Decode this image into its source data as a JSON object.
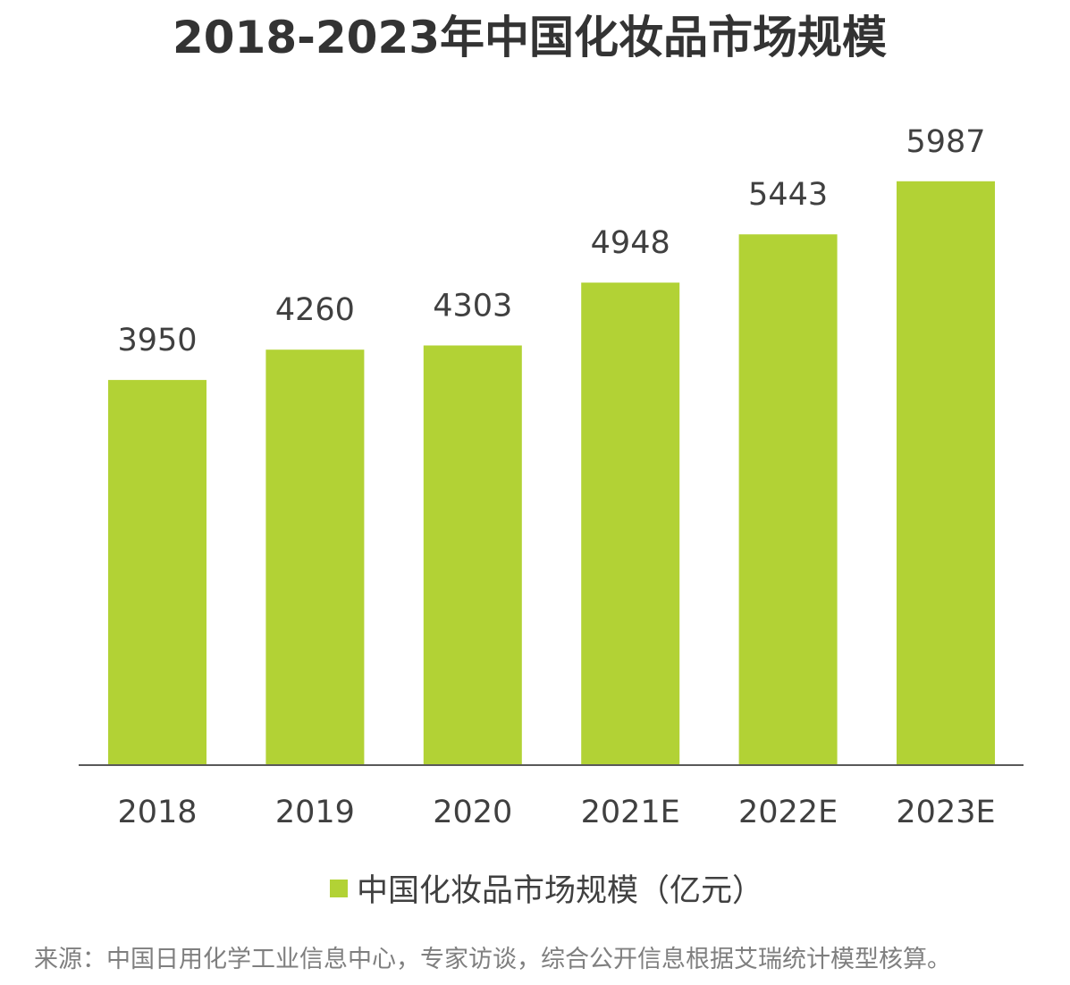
{
  "colors": {
    "bar": "#b2d235",
    "axis": "#595959",
    "text": "#404040",
    "source_text": "#7f7f7f"
  },
  "chart_data": {
    "type": "bar",
    "title": "2018-2023年中国化妆品市场规模",
    "categories": [
      "2018",
      "2019",
      "2020",
      "2021E",
      "2022E",
      "2023E"
    ],
    "series": [
      {
        "name": "中国化妆品市场规模（亿元）",
        "values": [
          3950,
          4260,
          4303,
          4948,
          5443,
          5987
        ]
      }
    ],
    "data_labels": [
      "3950",
      "4260",
      "4303",
      "4948",
      "5443",
      "5987"
    ],
    "ylim": [
      0,
      6000
    ],
    "grid": false,
    "legend_position": "bottom"
  },
  "legend": {
    "label": "中国化妆品市场规模（亿元）"
  },
  "source": "来源：中国日用化学工业信息中心，专家访谈，综合公开信息根据艾瑞统计模型核算。"
}
